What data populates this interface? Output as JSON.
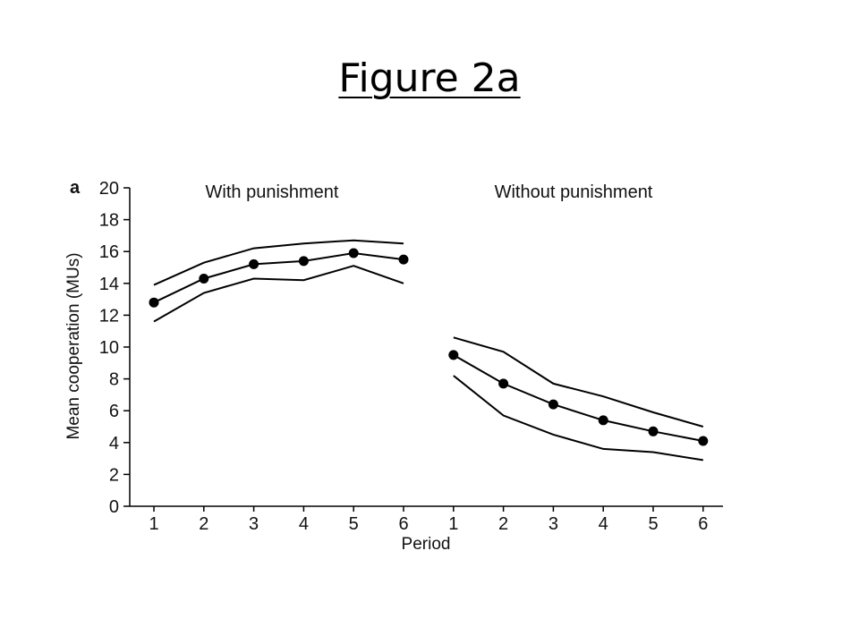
{
  "slide": {
    "title": "Figure 2a"
  },
  "chart_data": {
    "type": "line",
    "panel_label": "a",
    "ylabel": "Mean cooperation (MUs)",
    "xlabel": "Period",
    "ylim": [
      0,
      20
    ],
    "yticks": [
      0,
      2,
      4,
      6,
      8,
      10,
      12,
      14,
      16,
      18,
      20
    ],
    "grid": false,
    "groups": [
      {
        "label": "With punishment",
        "periods": [
          1,
          2,
          3,
          4,
          5,
          6
        ],
        "mean": [
          12.8,
          14.3,
          15.2,
          15.4,
          15.9,
          15.5
        ],
        "upper": [
          13.9,
          15.3,
          16.2,
          16.5,
          16.7,
          16.5
        ],
        "lower": [
          11.6,
          13.4,
          14.3,
          14.2,
          15.1,
          14.0
        ]
      },
      {
        "label": "Without punishment",
        "periods": [
          1,
          2,
          3,
          4,
          5,
          6
        ],
        "mean": [
          9.5,
          7.7,
          6.4,
          5.4,
          4.7,
          4.1
        ],
        "upper": [
          10.6,
          9.7,
          7.7,
          6.9,
          5.9,
          5.0
        ],
        "lower": [
          8.2,
          5.7,
          4.5,
          3.6,
          3.4,
          2.9
        ]
      }
    ]
  }
}
